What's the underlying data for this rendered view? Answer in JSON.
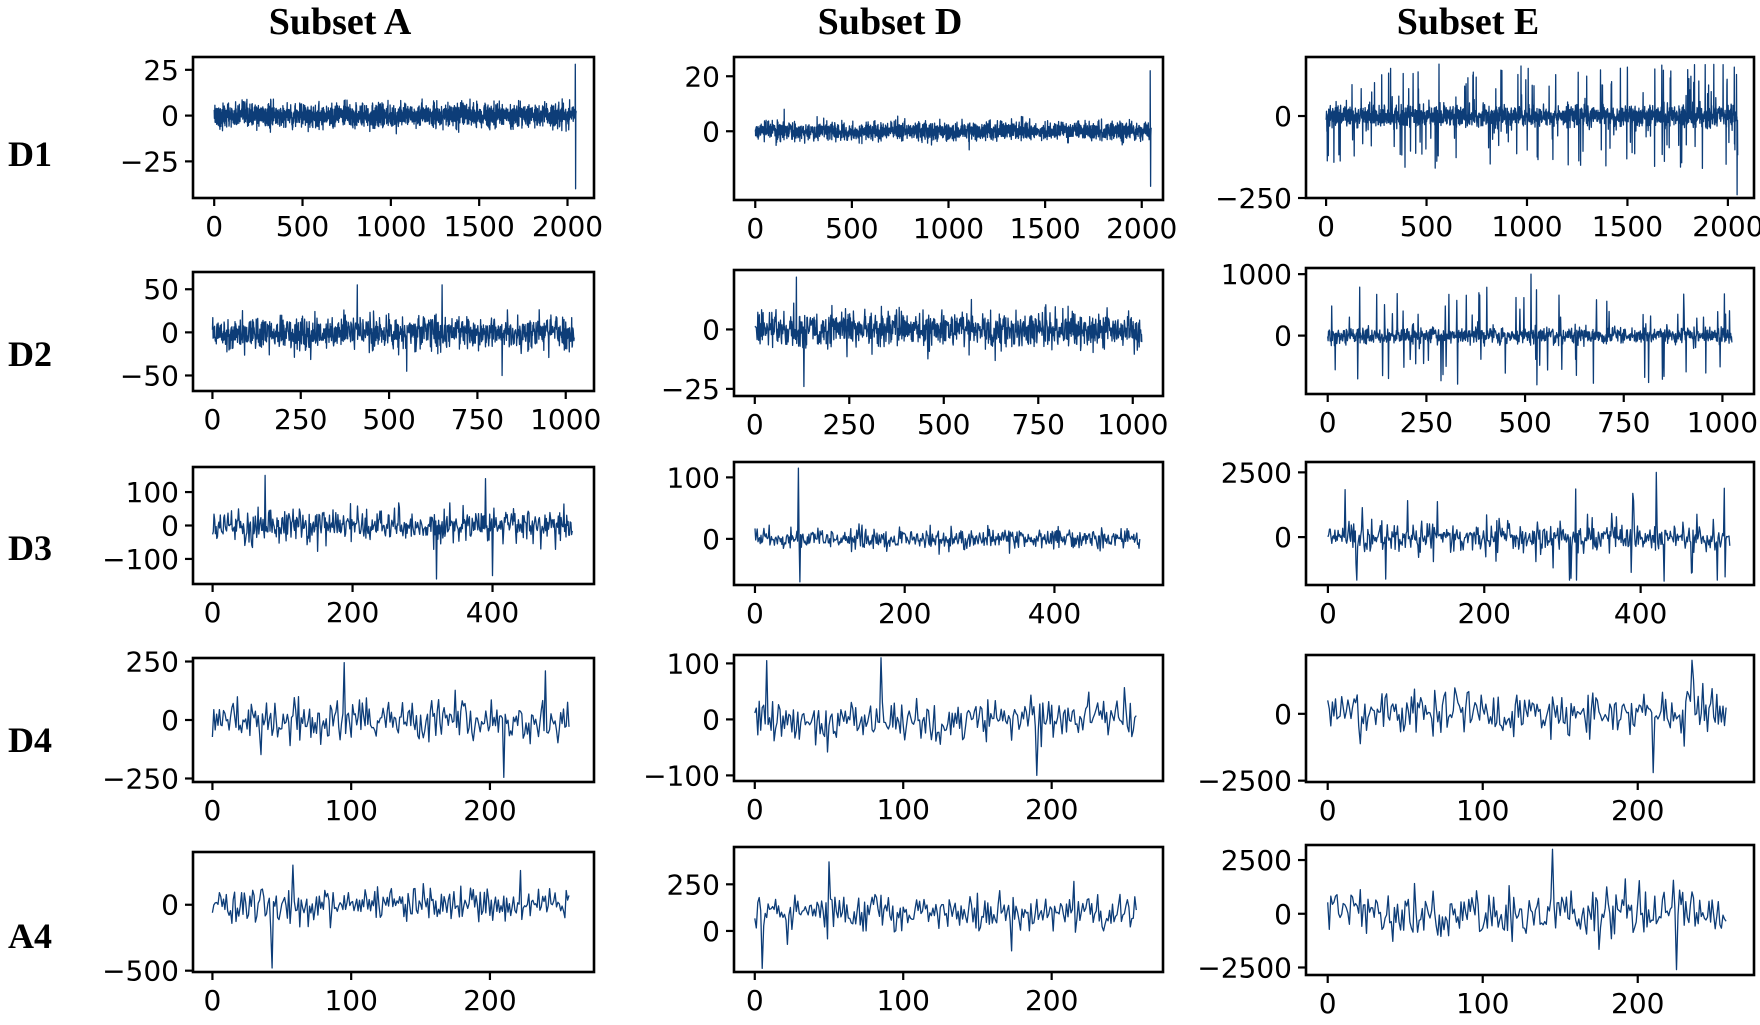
{
  "figure": {
    "column_titles": [
      "Subset A",
      "Subset D",
      "Subset E"
    ],
    "row_labels": [
      "D1",
      "D2",
      "D3",
      "D4",
      "A4"
    ],
    "line_color": "#0d3d78"
  },
  "chart_data": [
    {
      "type": "line",
      "row": "D1",
      "column": "Subset A",
      "n": 2050,
      "x_ticks": [
        0,
        500,
        1000,
        1500,
        2000
      ],
      "x_tick_labels": [
        "0",
        "500",
        "1000",
        "1500",
        "2000"
      ],
      "xlim": [
        -120,
        2150
      ],
      "y_ticks": [
        25,
        0,
        -25
      ],
      "y_tick_labels": [
        "25",
        "0",
        "−25"
      ],
      "ylim": [
        -45,
        32
      ],
      "amplitude": 6,
      "spikes": [
        [
          2044,
          28
        ],
        [
          2046,
          -40
        ]
      ]
    },
    {
      "type": "line",
      "row": "D1",
      "column": "Subset D",
      "n": 2050,
      "x_ticks": [
        0,
        500,
        1000,
        1500,
        2000
      ],
      "x_tick_labels": [
        "0",
        "500",
        "1000",
        "1500",
        "2000"
      ],
      "xlim": [
        -110,
        2110
      ],
      "y_ticks": [
        20,
        0
      ],
      "y_tick_labels": [
        "20",
        "0"
      ],
      "ylim": [
        -25,
        27
      ],
      "amplitude": 3,
      "spikes": [
        [
          2044,
          22
        ],
        [
          2046,
          -20
        ],
        [
          150,
          8
        ]
      ]
    },
    {
      "type": "line",
      "row": "D1",
      "column": "Subset E",
      "n": 2050,
      "x_ticks": [
        0,
        500,
        1000,
        1500,
        2000
      ],
      "x_tick_labels": [
        "0",
        "500",
        "1000",
        "1500",
        "2000"
      ],
      "xlim": [
        -100,
        2130
      ],
      "y_ticks": [
        0,
        -250
      ],
      "y_tick_labels": [
        "0",
        "−250"
      ],
      "ylim": [
        -250,
        180
      ],
      "amplitude": 30,
      "spiky": true,
      "spike_amp": 160,
      "spikes": [
        [
          2046,
          -240
        ]
      ]
    },
    {
      "type": "line",
      "row": "D2",
      "column": "Subset A",
      "n": 1025,
      "x_ticks": [
        0,
        250,
        500,
        750,
        1000
      ],
      "x_tick_labels": [
        "0",
        "250",
        "500",
        "750",
        "1000"
      ],
      "xlim": [
        -55,
        1080
      ],
      "y_ticks": [
        50,
        0,
        -50
      ],
      "y_tick_labels": [
        "50",
        "0",
        "−50"
      ],
      "ylim": [
        -68,
        70
      ],
      "amplitude": 18,
      "spikes": [
        [
          410,
          55
        ],
        [
          550,
          -45
        ],
        [
          650,
          55
        ],
        [
          820,
          -50
        ]
      ]
    },
    {
      "type": "line",
      "row": "D2",
      "column": "Subset D",
      "n": 1025,
      "x_ticks": [
        0,
        250,
        500,
        750,
        1000
      ],
      "x_tick_labels": [
        "0",
        "250",
        "500",
        "750",
        "1000"
      ],
      "xlim": [
        -55,
        1080
      ],
      "y_ticks": [
        0,
        -25
      ],
      "y_tick_labels": [
        "0",
        "−25"
      ],
      "ylim": [
        -28,
        25
      ],
      "amplitude": 7,
      "spikes": [
        [
          130,
          -24
        ],
        [
          110,
          22
        ]
      ]
    },
    {
      "type": "line",
      "row": "D2",
      "column": "Subset E",
      "n": 1025,
      "x_ticks": [
        0,
        250,
        500,
        750,
        1000
      ],
      "x_tick_labels": [
        "0",
        "250",
        "500",
        "750",
        "1000"
      ],
      "xlim": [
        -55,
        1080
      ],
      "y_ticks": [
        1000,
        0
      ],
      "y_tick_labels": [
        "1000",
        "0"
      ],
      "ylim": [
        -950,
        1100
      ],
      "amplitude": 120,
      "spiky": true,
      "spike_amp": 800,
      "spikes": [
        [
          515,
          1000
        ],
        [
          530,
          -800
        ]
      ]
    },
    {
      "type": "line",
      "row": "D3",
      "column": "Subset A",
      "n": 515,
      "x_ticks": [
        0,
        200,
        400
      ],
      "x_tick_labels": [
        "0",
        "200",
        "400"
      ],
      "xlim": [
        -28,
        545
      ],
      "y_ticks": [
        100,
        0,
        -100
      ],
      "y_tick_labels": [
        "100",
        "0",
        "−100"
      ],
      "ylim": [
        -175,
        175
      ],
      "amplitude": 45,
      "spikes": [
        [
          75,
          150
        ],
        [
          320,
          -160
        ],
        [
          390,
          140
        ],
        [
          400,
          -150
        ]
      ]
    },
    {
      "type": "line",
      "row": "D3",
      "column": "Subset D",
      "n": 515,
      "x_ticks": [
        0,
        200,
        400
      ],
      "x_tick_labels": [
        "0",
        "200",
        "400"
      ],
      "xlim": [
        -28,
        545
      ],
      "y_ticks": [
        100,
        0
      ],
      "y_tick_labels": [
        "100",
        "0"
      ],
      "ylim": [
        -75,
        125
      ],
      "amplitude": 15,
      "spikes": [
        [
          58,
          115
        ],
        [
          60,
          -70
        ]
      ]
    },
    {
      "type": "line",
      "row": "D3",
      "column": "Subset E",
      "n": 515,
      "x_ticks": [
        0,
        200,
        400
      ],
      "x_tick_labels": [
        "0",
        "200",
        "400"
      ],
      "xlim": [
        -28,
        545
      ],
      "y_ticks": [
        2500,
        0
      ],
      "y_tick_labels": [
        "2500",
        "0"
      ],
      "ylim": [
        -1850,
        2900
      ],
      "amplitude": 500,
      "spiky": true,
      "spike_amp": 1900,
      "spikes": [
        [
          420,
          2500
        ],
        [
          430,
          -1700
        ]
      ]
    },
    {
      "type": "line",
      "row": "D4",
      "column": "Subset A",
      "n": 258,
      "x_ticks": [
        0,
        100,
        200
      ],
      "x_tick_labels": [
        "0",
        "100",
        "200"
      ],
      "xlim": [
        -14,
        275
      ],
      "y_ticks": [
        250,
        0,
        -250
      ],
      "y_tick_labels": [
        "250",
        "0",
        "−250"
      ],
      "ylim": [
        -265,
        265
      ],
      "amplitude": 80,
      "spikes": [
        [
          95,
          245
        ],
        [
          210,
          -245
        ],
        [
          240,
          210
        ]
      ]
    },
    {
      "type": "line",
      "row": "D4",
      "column": "Subset D",
      "n": 258,
      "x_ticks": [
        0,
        100,
        200
      ],
      "x_tick_labels": [
        "0",
        "100",
        "200"
      ],
      "xlim": [
        -14,
        275
      ],
      "y_ticks": [
        100,
        0,
        -100
      ],
      "y_tick_labels": [
        "100",
        "0",
        "−100"
      ],
      "ylim": [
        -110,
        115
      ],
      "amplitude": 35,
      "spikes": [
        [
          8,
          105
        ],
        [
          85,
          110
        ],
        [
          190,
          -100
        ]
      ]
    },
    {
      "type": "line",
      "row": "D4",
      "column": "Subset E",
      "n": 258,
      "x_ticks": [
        0,
        100,
        200
      ],
      "x_tick_labels": [
        "0",
        "100",
        "200"
      ],
      "xlim": [
        -14,
        275
      ],
      "y_ticks": [
        0,
        -2500
      ],
      "y_tick_labels": [
        "0",
        "−2500"
      ],
      "ylim": [
        -2550,
        2200
      ],
      "amplitude": 800,
      "spikes": [
        [
          235,
          2000
        ],
        [
          210,
          -2200
        ]
      ]
    },
    {
      "type": "line",
      "row": "A4",
      "column": "Subset A",
      "n": 258,
      "x_ticks": [
        0,
        100,
        200
      ],
      "x_tick_labels": [
        "0",
        "100",
        "200"
      ],
      "xlim": [
        -14,
        275
      ],
      "y_ticks": [
        0,
        -500
      ],
      "y_tick_labels": [
        "0",
        "−500"
      ],
      "ylim": [
        -510,
        400
      ],
      "amplitude": 120,
      "spikes": [
        [
          43,
          -480
        ],
        [
          58,
          300
        ],
        [
          222,
          260
        ]
      ]
    },
    {
      "type": "line",
      "row": "A4",
      "column": "Subset D",
      "n": 258,
      "x_ticks": [
        0,
        100,
        200
      ],
      "x_tick_labels": [
        "0",
        "100",
        "200"
      ],
      "xlim": [
        -14,
        275
      ],
      "y_ticks": [
        250,
        0
      ],
      "y_tick_labels": [
        "250",
        "0"
      ],
      "ylim": [
        -220,
        450
      ],
      "amplitude": 100,
      "offset": 100,
      "spikes": [
        [
          5,
          -200
        ],
        [
          50,
          370
        ]
      ]
    },
    {
      "type": "line",
      "row": "A4",
      "column": "Subset E",
      "n": 258,
      "x_ticks": [
        0,
        100,
        200
      ],
      "x_tick_labels": [
        "0",
        "100",
        "200"
      ],
      "xlim": [
        -14,
        275
      ],
      "y_ticks": [
        2500,
        0,
        -2500
      ],
      "y_tick_labels": [
        "2500",
        "0",
        "−2500"
      ],
      "ylim": [
        -2850,
        3200
      ],
      "amplitude": 1000,
      "spikes": [
        [
          145,
          3000
        ],
        [
          225,
          -2600
        ]
      ]
    }
  ]
}
